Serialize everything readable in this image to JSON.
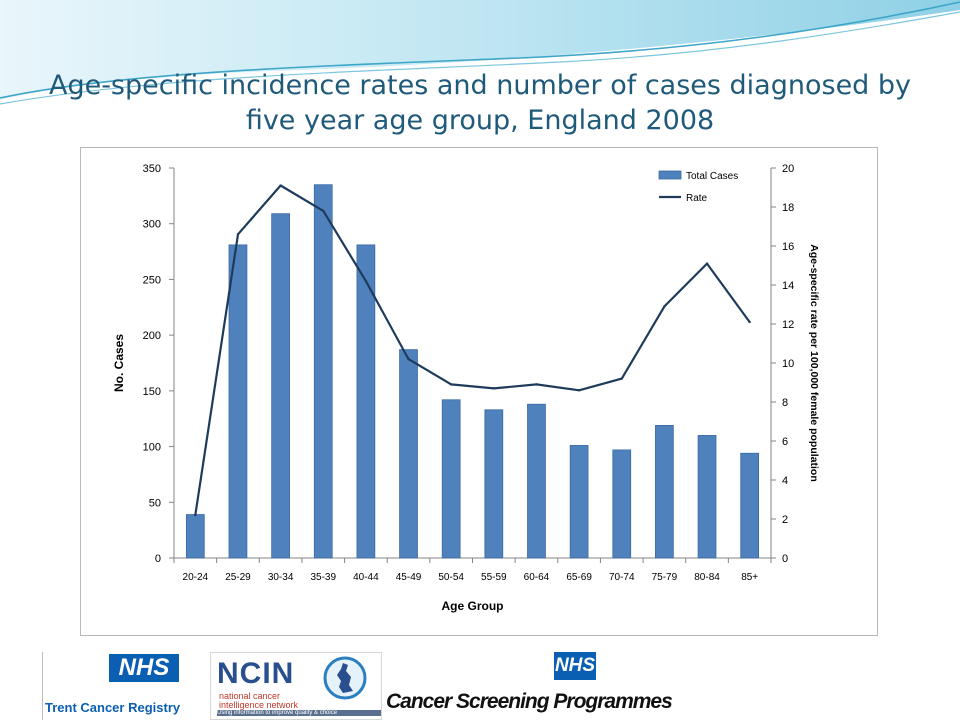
{
  "slide": {
    "title_line1": "Age-specific incidence rates and number of cases diagnosed by",
    "title_line2": "five year age group, England 2008",
    "colors": {
      "title": "#1f5a7a",
      "wave_light": "#bfe6f2",
      "wave_dark": "#3fa6c8"
    }
  },
  "chart_data": {
    "type": "bar+line",
    "categories": [
      "20-24",
      "25-29",
      "30-34",
      "35-39",
      "40-44",
      "45-49",
      "50-54",
      "55-59",
      "60-64",
      "65-69",
      "70-74",
      "75-79",
      "80-84",
      "85+"
    ],
    "series": [
      {
        "name": "Total Cases",
        "type": "bar",
        "axis": "left",
        "color": "#4f81bd",
        "values": [
          39,
          281,
          309,
          335,
          281,
          187,
          142,
          133,
          138,
          101,
          97,
          119,
          110,
          94
        ]
      },
      {
        "name": "Rate",
        "type": "line",
        "axis": "right",
        "color": "#1f3b5c",
        "values": [
          2.2,
          16.6,
          19.1,
          17.8,
          14.2,
          10.2,
          8.9,
          8.7,
          8.9,
          8.6,
          9.2,
          12.9,
          15.1,
          12.1
        ]
      }
    ],
    "xlabel": "Age Group",
    "ylabel": "No. Cases",
    "y2label": "Age-specific rate per 100,000 female population",
    "ylim": [
      0,
      350
    ],
    "yticks": [
      0,
      50,
      100,
      150,
      200,
      250,
      300,
      350
    ],
    "y2lim": [
      0,
      20
    ],
    "y2ticks": [
      0,
      2,
      4,
      6,
      8,
      10,
      12,
      14,
      16,
      18,
      20
    ],
    "grid": false,
    "legend_position": "top-right"
  },
  "logos": {
    "trent": {
      "nhs": "NHS",
      "name": "Trent Cancer Registry"
    },
    "ncin": {
      "acronym": "NCIN",
      "line1": "national cancer",
      "line2": "intelligence network",
      "tagline": "Using information to improve quality & choice"
    },
    "screening": {
      "nhs": "NHS",
      "name": "Cancer Screening Programmes"
    }
  }
}
